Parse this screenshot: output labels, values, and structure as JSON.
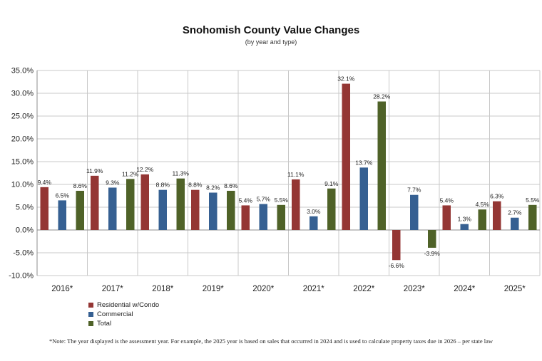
{
  "chart_data": {
    "type": "bar",
    "title": "Snohomish County Value Changes",
    "subtitle": "(by year and type)",
    "categories": [
      "2016*",
      "2017*",
      "2018*",
      "2019*",
      "2020*",
      "2021*",
      "2022*",
      "2023*",
      "2024*",
      "2025*"
    ],
    "series": [
      {
        "name": "Residential w/Condo",
        "color": "#943634",
        "values": [
          9.4,
          11.9,
          12.2,
          8.8,
          5.4,
          11.1,
          32.1,
          -6.6,
          5.4,
          6.3
        ]
      },
      {
        "name": "Commercial",
        "color": "#366092",
        "values": [
          6.5,
          9.3,
          8.8,
          8.2,
          5.7,
          3.0,
          13.7,
          7.7,
          1.3,
          2.7
        ]
      },
      {
        "name": "Total",
        "color": "#4F6228",
        "values": [
          8.6,
          11.2,
          11.3,
          8.6,
          5.5,
          9.1,
          28.2,
          -3.9,
          4.5,
          5.5
        ]
      }
    ],
    "ylim": [
      -10,
      35
    ],
    "yticks": [
      -10,
      -5,
      0,
      5,
      10,
      15,
      20,
      25,
      30,
      35
    ],
    "ytick_format": "percent_1dp",
    "grid": true,
    "legend_position": "bottom-left",
    "xlabel": "",
    "ylabel": ""
  },
  "footnote": "*Note: The year displayed is the assessment year. For example, the 2025 year is based on sales that occurred in 2024 and is used to calculate property taxes due in 2026 – per state law"
}
